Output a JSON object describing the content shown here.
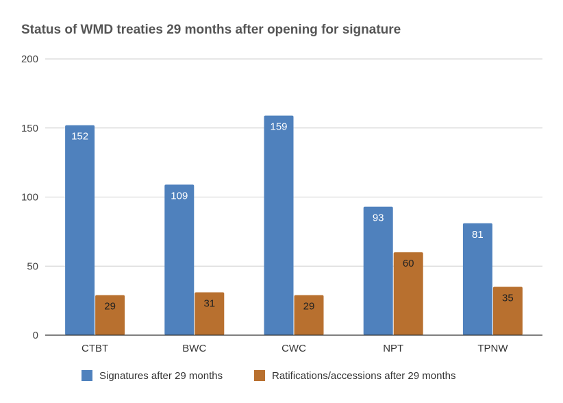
{
  "chart_data": {
    "type": "bar",
    "title": "Status of WMD treaties 29 months after opening for signature",
    "xlabel": "",
    "ylabel": "",
    "categories": [
      "CTBT",
      "BWC",
      "CWC",
      "NPT",
      "TPNW"
    ],
    "series": [
      {
        "name": "Signatures after 29 months",
        "values": [
          152,
          109,
          159,
          93,
          81
        ],
        "color": "#4f81bd",
        "label_color": "#ffffff"
      },
      {
        "name": "Ratifications/accessions after 29 months",
        "values": [
          29,
          31,
          29,
          60,
          35
        ],
        "color": "#b8702f",
        "label_color": "#222222"
      }
    ],
    "ylim": [
      0,
      200
    ],
    "yticks": [
      0,
      50,
      100,
      150,
      200
    ],
    "grid": true,
    "legend": "bottom"
  }
}
